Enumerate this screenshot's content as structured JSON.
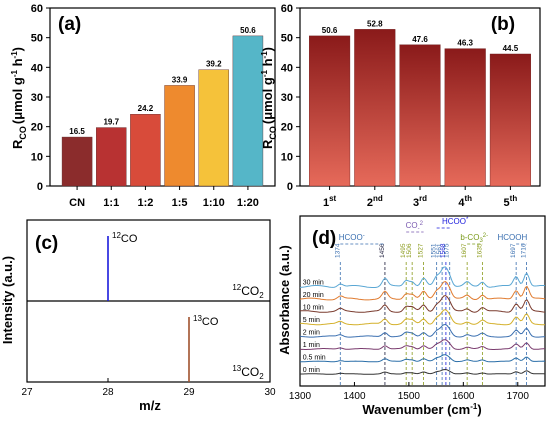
{
  "chart_data": [
    {
      "panel": "(a)",
      "type": "bar",
      "categories": [
        "CN",
        "1:1",
        "1:2",
        "1:5",
        "1:10",
        "1:20"
      ],
      "values": [
        16.5,
        19.7,
        24.2,
        33.9,
        39.2,
        50.6
      ],
      "value_labels": [
        "16.5",
        "19.7",
        "24.2",
        "33.9",
        "39.2",
        "50.6"
      ],
      "colors": [
        "#8b2c2c",
        "#b83232",
        "#d84b3a",
        "#ee8a2e",
        "#f5c23a",
        "#55b6c8"
      ],
      "ylabel_main": "R",
      "ylabel_sub": "CO",
      "ylabel_unit": "(μmol g",
      "ylabel_unit_sup1": "-1",
      "ylabel_unit_mid": " h",
      "ylabel_unit_sup2": "-1",
      "ylabel_unit_end": ")",
      "ylim": [
        0,
        60
      ],
      "yticks": [
        "0",
        "10",
        "20",
        "30",
        "40",
        "50",
        "60"
      ]
    },
    {
      "panel": "(b)",
      "type": "bar",
      "categories": [
        {
          "num": "1",
          "sup": "st"
        },
        {
          "num": "2",
          "sup": "nd"
        },
        {
          "num": "3",
          "sup": "rd"
        },
        {
          "num": "4",
          "sup": "th"
        },
        {
          "num": "5",
          "sup": "th"
        }
      ],
      "values": [
        50.6,
        52.8,
        47.6,
        46.3,
        44.5
      ],
      "value_labels": [
        "50.6",
        "52.8",
        "47.6",
        "46.3",
        "44.5"
      ],
      "ylabel_main": "R",
      "ylabel_sub": "CO",
      "ylabel_unit": "(μmol g",
      "ylabel_unit_sup1": "-1",
      "ylabel_unit_mid": " h",
      "ylabel_unit_sup2": "-1",
      "ylabel_unit_end": ")",
      "ylim": [
        0,
        60
      ],
      "yticks": [
        "0",
        "10",
        "20",
        "30",
        "40",
        "50",
        "60"
      ]
    },
    {
      "panel": "(c)",
      "type": "line",
      "xlabel": "m/z",
      "ylabel": "Intensity (a.u.)",
      "xlim": [
        27,
        30
      ],
      "xticks": [
        "27",
        "28",
        "29",
        "30"
      ],
      "series": [
        {
          "x": 28,
          "color": "#1a1adc",
          "label_sup": "12",
          "label_main": "CO"
        },
        {
          "x": 29,
          "color": "#a0522d",
          "label_sup": "13",
          "label_main": "CO"
        }
      ],
      "section_labels": [
        {
          "sup": "12",
          "main": "CO",
          "sub": "2"
        },
        {
          "sup": "13",
          "main": "CO",
          "sub": "2"
        }
      ]
    },
    {
      "panel": "(d)",
      "type": "line",
      "xlabel": "Wavenumber (cm",
      "xlabel_sup": "-1",
      "xlabel_end": ")",
      "ylabel": "Absorbance (a.u.)",
      "xlim": [
        1300,
        1750
      ],
      "xticks": [
        "1300",
        "1400",
        "1500",
        "1600",
        "1700"
      ],
      "series_names": [
        "30 min",
        "20 min",
        "10 min",
        "5 min",
        "2 min",
        "1 min",
        "0.5 min",
        "0 min"
      ],
      "series_colors": [
        "#5aa7d4",
        "#e07b2f",
        "#7a3b2e",
        "#d4b02a",
        "#3a6fb0",
        "#7a3b6e",
        "#2a6ea8",
        "#333333"
      ],
      "peaks": [
        "1374",
        "1456",
        "1495",
        "1506",
        "1527",
        "1551",
        "1561",
        "1568",
        "1575",
        "1607",
        "1635",
        "1697",
        "1716"
      ],
      "group_labels": [
        "HCOO",
        "CO",
        "HCOO",
        "b-CO",
        "HCOOH"
      ],
      "group_sup": [
        "-",
        "2",
        "*",
        "2-",
        ""
      ],
      "group_sub": [
        "",
        "-",
        "",
        "3",
        ""
      ],
      "group_colors": [
        "#3a6fb0",
        "#7a5ab0",
        "#1a1adc",
        "#7a9a1a",
        "#3a6fb0"
      ]
    }
  ]
}
